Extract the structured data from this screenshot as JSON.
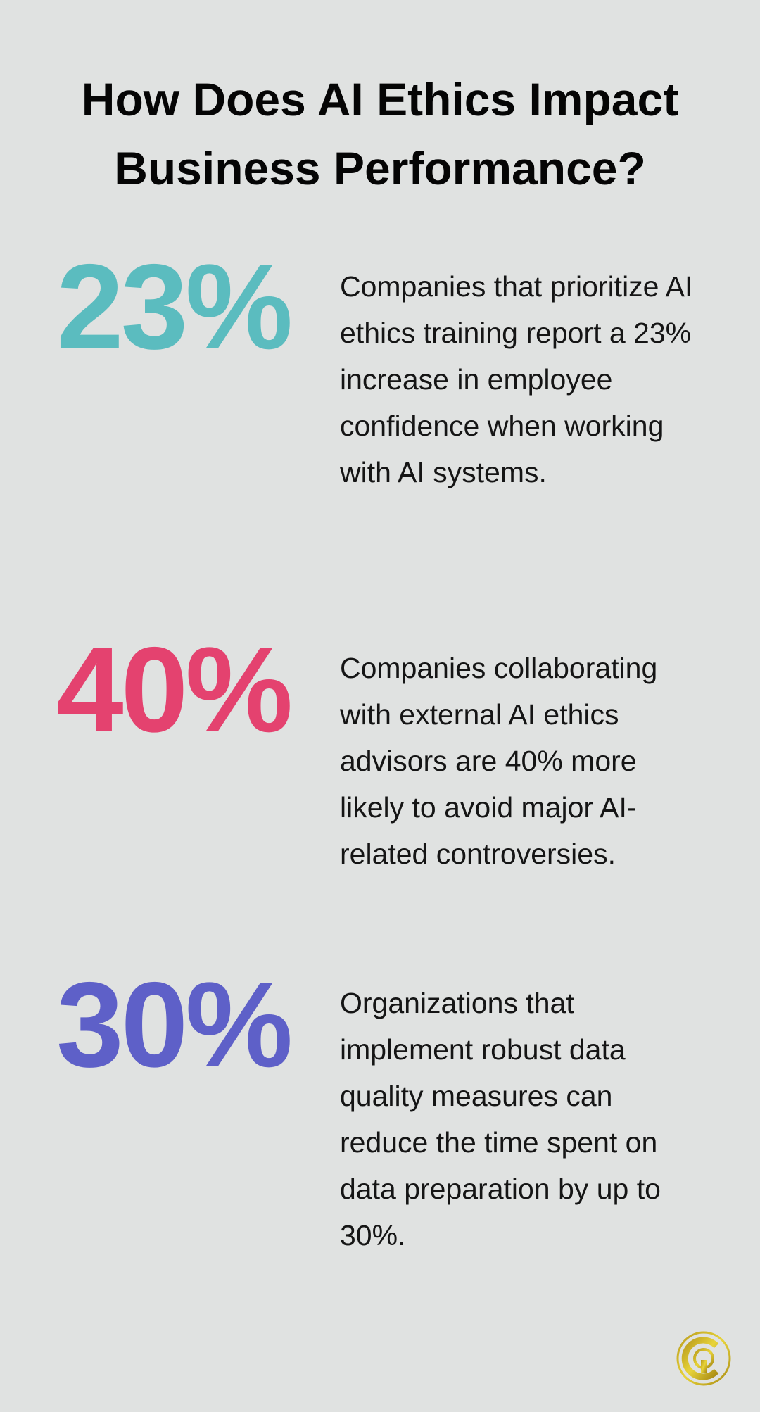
{
  "title": "How Does AI Ethics Impact Business Performance?",
  "stats": [
    {
      "value": "23%",
      "color": "#5bbcbf",
      "text": "Companies that prioritize AI ethics training report a 23% increase in employee confidence when working with AI systems."
    },
    {
      "value": "40%",
      "color": "#e4426f",
      "text": "Companies collaborating with external AI ethics advisors are 40% more likely to avoid major AI-related controversies."
    },
    {
      "value": "30%",
      "color": "#5e60c8",
      "text": "Organizations that implement robust data quality measures can reduce the time spent on data preparation by up to 30%."
    }
  ],
  "logo": {
    "icon": "gold-circle-q-logo",
    "color": "#d4b82a"
  }
}
